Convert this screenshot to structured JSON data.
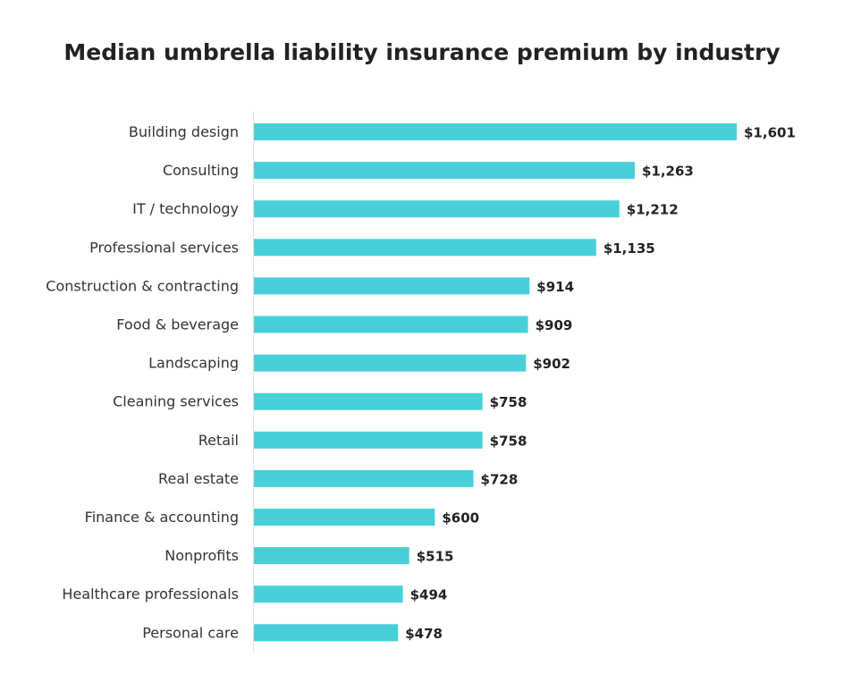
{
  "chart_data": {
    "type": "bar",
    "orientation": "horizontal",
    "title": "Median umbrella liability insurance premium by industry",
    "xlabel": "",
    "ylabel": "",
    "xlim": [
      0,
      1700
    ],
    "grid": false,
    "legend": "none",
    "bar_color": "#48d0d8",
    "categories": [
      "Building design",
      "Consulting",
      "IT / technology",
      "Professional services",
      "Construction & contracting",
      "Food & beverage",
      "Landscaping",
      "Cleaning services",
      "Retail",
      "Real estate",
      "Finance & accounting",
      "Nonprofits",
      "Healthcare professionals",
      "Personal care"
    ],
    "values": [
      1601,
      1263,
      1212,
      1135,
      914,
      909,
      902,
      758,
      758,
      728,
      600,
      515,
      494,
      478
    ],
    "value_labels": [
      "$1,601",
      "$1,263",
      "$1,212",
      "$1,135",
      "$914",
      "$909",
      "$902",
      "$758",
      "$758",
      "$728",
      "$600",
      "$515",
      "$494",
      "$478"
    ]
  }
}
